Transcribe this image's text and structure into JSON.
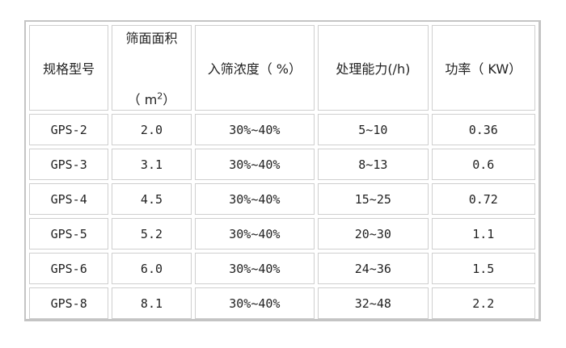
{
  "headers": {
    "model": "规格型号",
    "area": "筛面面积",
    "area_unit_open": "（ m",
    "area_unit_sup": "2",
    "area_unit_close": "）",
    "concentration": "入筛浓度（ %）",
    "capacity": "处理能力(/h)",
    "power": "功率（ KW）"
  },
  "rows": [
    {
      "model": "GPS-2",
      "area": "2.0",
      "concentration": "30%~40%",
      "capacity": "5~10",
      "power": "0.36"
    },
    {
      "model": "GPS-3",
      "area": "3.1",
      "concentration": "30%~40%",
      "capacity": "8~13",
      "power": "0.6"
    },
    {
      "model": "GPS-4",
      "area": "4.5",
      "concentration": "30%~40%",
      "capacity": "15~25",
      "power": "0.72"
    },
    {
      "model": "GPS-5",
      "area": "5.2",
      "concentration": "30%~40%",
      "capacity": "20~30",
      "power": "1.1"
    },
    {
      "model": "GPS-6",
      "area": "6.0",
      "concentration": "30%~40%",
      "capacity": "24~36",
      "power": "1.5"
    },
    {
      "model": "GPS-8",
      "area": "8.1",
      "concentration": "30%~40%",
      "capacity": "32~48",
      "power": "2.2"
    }
  ]
}
